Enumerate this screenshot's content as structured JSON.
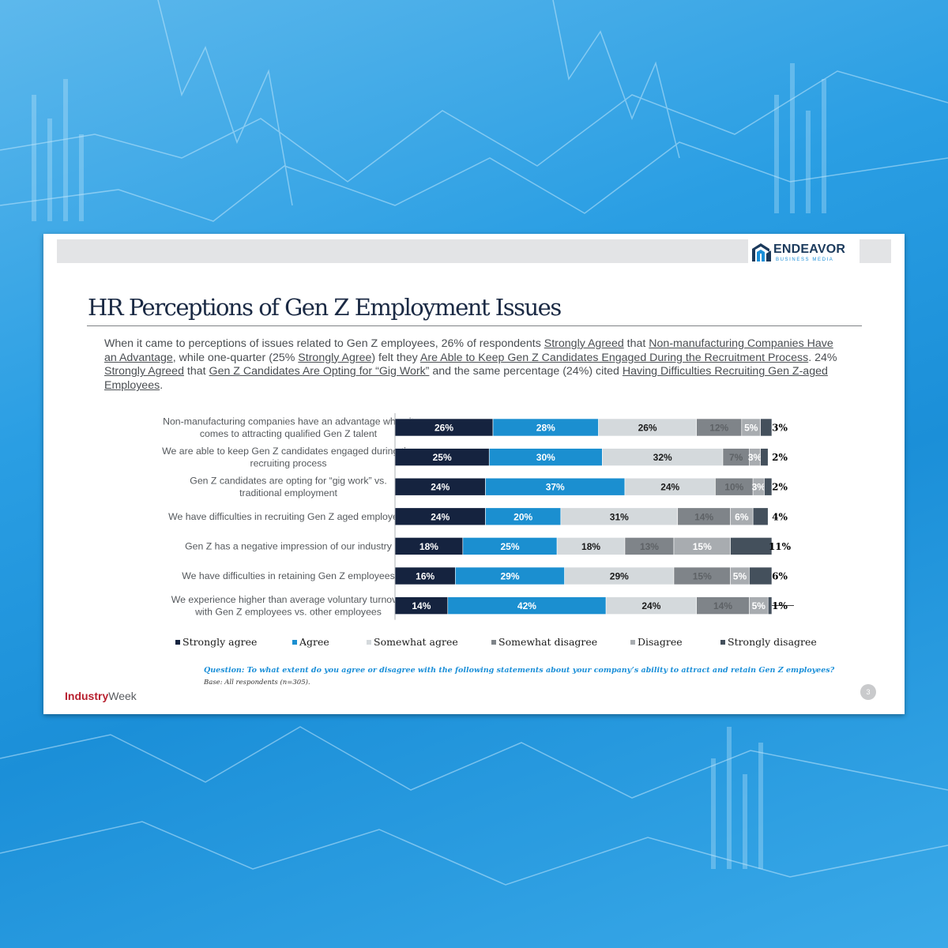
{
  "header": {
    "logo_text": "ENDEAVOR",
    "logo_subtext": "BUSINESS MEDIA"
  },
  "title": "HR Perceptions of Gen Z Employment Issues",
  "summary": {
    "p1": "When it came to perceptions of issues related to Gen Z employees, 26% of respondents ",
    "u1": "Strongly Agreed",
    "p2": " that ",
    "u2": "Non-manufacturing Companies Have an Advantage",
    "p3": ", while one-quarter (25% ",
    "u3": "Strongly Agree",
    "p4": ") felt they ",
    "u4": "Are Able to Keep Gen Z Candidates Engaged During the Recruitment Process",
    "p5": ". 24% ",
    "u5": "Strongly Agreed",
    "p6": " that ",
    "u6": "Gen Z Candidates Are Opting for “Gig Work”",
    "p7": " and the same percentage (24%) cited ",
    "u7": "Having Difficulties Recruiting Gen Z-aged Employees",
    "p8": "."
  },
  "chart_data": {
    "type": "bar",
    "stacked": true,
    "orientation": "horizontal",
    "legend_position": "bottom",
    "categories": [
      "Non-manufacturing companies have an advantage when it comes to attracting qualified Gen Z talent",
      "We are able to keep Gen Z candidates engaged during the recruiting process",
      "Gen Z candidates are opting for “gig work” vs. traditional employment",
      "We have difficulties in recruiting Gen Z aged employees",
      "Gen Z has a negative impression of our industry",
      "We have difficulties in retaining Gen Z employees",
      "We experience higher than average voluntary turnover with Gen Z employees vs. other employees"
    ],
    "series": [
      {
        "name": "Strongly agree",
        "color": "#15233f",
        "label_color": "#ffffff",
        "values": [
          26,
          25,
          24,
          24,
          18,
          16,
          14
        ]
      },
      {
        "name": "Agree",
        "color": "#1b8fd0",
        "label_color": "#ffffff",
        "values": [
          28,
          30,
          37,
          20,
          25,
          29,
          42
        ]
      },
      {
        "name": "Somewhat agree",
        "color": "#d4d9dc",
        "label_color": "#1a1a1a",
        "values": [
          26,
          32,
          24,
          31,
          18,
          29,
          24
        ]
      },
      {
        "name": "Somewhat disagree",
        "color": "#7f8489",
        "label_color": "#5e6266",
        "values": [
          12,
          7,
          10,
          14,
          13,
          15,
          14
        ]
      },
      {
        "name": "Disagree",
        "color": "#a8acb0",
        "label_color": "#ffffff",
        "values": [
          5,
          3,
          3,
          6,
          15,
          5,
          5
        ]
      },
      {
        "name": "Strongly disagree",
        "color": "#44505c",
        "label_color": "#000000",
        "values": [
          3,
          2,
          2,
          4,
          11,
          6,
          1
        ]
      }
    ],
    "xlim": [
      0,
      100
    ]
  },
  "footnote": {
    "question": "Question: To what extent do you agree or disagree with the following statements about your company’s ability to attract and retain Gen Z employees?",
    "base": "Base: All respondents (n=305)."
  },
  "footer": {
    "brand_bold": "Industry",
    "brand_rest": "Week",
    "page": "3"
  }
}
